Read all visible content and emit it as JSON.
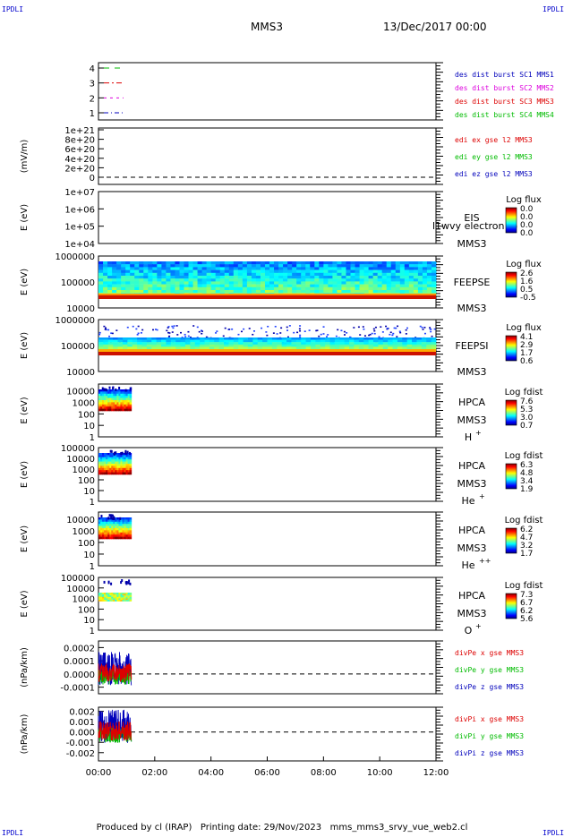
{
  "corner_label": "IPDLI",
  "header": {
    "spacecraft": "MMS3",
    "date": "13/Dec/2017 00:00"
  },
  "footer": {
    "produced_by": "Produced by cl (IRAP)",
    "printing_date": "Printing date: 29/Nov/2023",
    "file": "mms_mms3_srvy_vue_web2.cl"
  },
  "colors": {
    "black": "#000000",
    "red": "#dd0000",
    "green": "#00bb00",
    "magenta": "#dd00dd",
    "blue": "#0000bb",
    "axis": "#000000"
  },
  "chart_data": [
    {
      "type": "line",
      "panel": "des-dist-burst",
      "xlim": [
        "00:00",
        "12:00"
      ],
      "y_ticks": [
        "4",
        "3",
        "2",
        "1"
      ],
      "legend": [
        {
          "label": "des dist burst SC1 MMS1",
          "color": "#0000bb"
        },
        {
          "label": "des dist burst SC2 MMS2",
          "color": "#dd00dd"
        },
        {
          "label": "des dist burst SC3 MMS3",
          "color": "#dd0000"
        },
        {
          "label": "des dist burst SC4 MMS4",
          "color": "#00bb00"
        }
      ],
      "series": [
        {
          "name": "SC4",
          "y": 4,
          "color": "#00bb00",
          "dash": "6,6"
        },
        {
          "name": "SC3",
          "y": 3,
          "color": "#dd0000",
          "dash": "6,3,2,3"
        },
        {
          "name": "SC2",
          "y": 2,
          "color": "#dd00dd",
          "dash": "3,4"
        },
        {
          "name": "SC1",
          "y": 1,
          "color": "#0000bb",
          "dash": "5,3,1,3"
        }
      ]
    },
    {
      "type": "line",
      "panel": "edi",
      "ylabel": "(mV/m)",
      "y_ticks": [
        "1e+21",
        "8e+20",
        "6e+20",
        "4e+20",
        "2e+20",
        "0"
      ],
      "ylim": [
        0,
        1e+21
      ],
      "reference_line": 0,
      "legend": [
        {
          "label": "edi ex gse l2 MMS3",
          "color": "#dd0000"
        },
        {
          "label": "edi ey gse l2 MMS3",
          "color": "#00bb00"
        },
        {
          "label": "edi ez gse l2 MMS3",
          "color": "#0000bb"
        }
      ]
    },
    {
      "type": "heatmap",
      "panel": "eis",
      "ylabel": "E (eV)",
      "y_ticks": [
        "1e+07",
        "1e+06",
        "1e+05",
        "1e+04"
      ],
      "ylim": [
        10000,
        10000000
      ],
      "log_scale": true,
      "instrument": "EIS",
      "spacecraft": "MMS3",
      "overlay_text": "l1wvy electron to",
      "colorbar_title": "Log flux",
      "colorbar_ticks": [
        "0.0",
        "0.0",
        "0.0",
        "0.0"
      ]
    },
    {
      "type": "heatmap",
      "panel": "feeps-e",
      "ylabel": "E (eV)",
      "y_ticks": [
        "1000000",
        "100000",
        "10000"
      ],
      "ylim": [
        10000,
        1000000
      ],
      "log_scale": true,
      "instrument": "FEEPSE",
      "spacecraft": "MMS3",
      "time_coverage": [
        "00:00",
        "12:00"
      ],
      "colorbar_title": "Log flux",
      "colorbar_ticks": [
        "2.6",
        "1.6",
        "0.5",
        "-0.5"
      ]
    },
    {
      "type": "heatmap",
      "panel": "feeps-i",
      "ylabel": "E (eV)",
      "y_ticks": [
        "1000000",
        "100000",
        "10000"
      ],
      "ylim": [
        10000,
        1000000
      ],
      "log_scale": true,
      "instrument": "FEEPSI",
      "spacecraft": "MMS3",
      "time_coverage": [
        "00:00",
        "12:00"
      ],
      "colorbar_title": "Log flux",
      "colorbar_ticks": [
        "4.1",
        "2.9",
        "1.7",
        "0.6"
      ]
    },
    {
      "type": "heatmap",
      "panel": "hpca-h",
      "ylabel": "E (eV)",
      "y_ticks": [
        "10000",
        "1000",
        "100",
        "10",
        "1"
      ],
      "ylim": [
        1,
        40000
      ],
      "log_scale": true,
      "instrument": "HPCA",
      "spacecraft": "MMS3",
      "species": "H",
      "charge": "+",
      "time_coverage": [
        "00:00",
        "01:10"
      ],
      "colorbar_title": "Log fdist",
      "colorbar_ticks": [
        "7.6",
        "5.3",
        "3.0",
        "0.7"
      ]
    },
    {
      "type": "heatmap",
      "panel": "hpca-he",
      "ylabel": "E (eV)",
      "y_ticks": [
        "100000",
        "10000",
        "1000",
        "100",
        "10",
        "1"
      ],
      "ylim": [
        1,
        100000
      ],
      "log_scale": true,
      "instrument": "HPCA",
      "spacecraft": "MMS3",
      "species": "He",
      "charge": "+",
      "time_coverage": [
        "00:00",
        "01:10"
      ],
      "colorbar_title": "Log fdist",
      "colorbar_ticks": [
        "6.3",
        "4.8",
        "3.4",
        "1.9"
      ]
    },
    {
      "type": "heatmap",
      "panel": "hpca-he2",
      "ylabel": "E (eV)",
      "y_ticks": [
        "10000",
        "1000",
        "100",
        "10",
        "1"
      ],
      "ylim": [
        1,
        40000
      ],
      "log_scale": true,
      "instrument": "HPCA",
      "spacecraft": "MMS3",
      "species": "He",
      "charge": "++",
      "time_coverage": [
        "00:00",
        "01:10"
      ],
      "colorbar_title": "Log fdist",
      "colorbar_ticks": [
        "6.2",
        "4.7",
        "3.2",
        "1.7"
      ]
    },
    {
      "type": "heatmap",
      "panel": "hpca-o",
      "ylabel": "E (eV)",
      "y_ticks": [
        "100000",
        "10000",
        "1000",
        "100",
        "10",
        "1"
      ],
      "ylim": [
        1,
        100000
      ],
      "log_scale": true,
      "instrument": "HPCA",
      "spacecraft": "MMS3",
      "species": "O",
      "charge": "+",
      "time_coverage": [
        "00:00",
        "01:10"
      ],
      "colorbar_title": "Log fdist",
      "colorbar_ticks": [
        "7.3",
        "6.7",
        "6.2",
        "5.6"
      ]
    },
    {
      "type": "line",
      "panel": "divpe",
      "ylabel": "(nPa/km)",
      "y_ticks": [
        "0.0002",
        "0.0001",
        "0.0000",
        "-0.0001"
      ],
      "y_tick_values": [
        0.0002,
        0.0001,
        0,
        -0.0001
      ],
      "ylim": [
        -0.00015,
        0.00025
      ],
      "reference_line": 0,
      "time_coverage": [
        "00:00",
        "01:10"
      ],
      "legend": [
        {
          "label": "divPe x gse MMS3",
          "color": "#dd0000"
        },
        {
          "label": "divPe y gse MMS3",
          "color": "#00bb00"
        },
        {
          "label": "divPe z gse MMS3",
          "color": "#0000bb"
        }
      ]
    },
    {
      "type": "line",
      "panel": "divpi",
      "ylabel": "(nPa/km)",
      "y_ticks": [
        "0.002",
        "0.001",
        "0.000",
        "-0.001",
        "-0.002"
      ],
      "y_tick_values": [
        0.002,
        0.001,
        0,
        -0.001,
        -0.002
      ],
      "ylim": [
        -0.0028,
        0.0024
      ],
      "reference_line": 0,
      "time_coverage": [
        "00:00",
        "01:10"
      ],
      "legend": [
        {
          "label": "divPi x gse MMS3",
          "color": "#dd0000"
        },
        {
          "label": "divPi y gse MMS3",
          "color": "#00bb00"
        },
        {
          "label": "divPi z gse MMS3",
          "color": "#0000bb"
        }
      ]
    }
  ],
  "x_axis": {
    "ticks": [
      "00:00",
      "02:00",
      "04:00",
      "06:00",
      "08:00",
      "10:00",
      "12:00"
    ],
    "xlim": [
      "00:00",
      "12:00"
    ]
  }
}
